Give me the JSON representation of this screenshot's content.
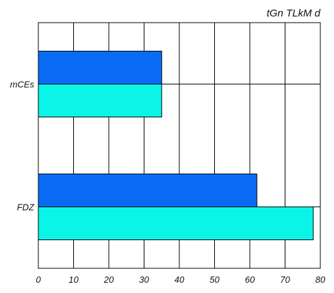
{
  "chart_data": {
    "type": "bar",
    "orientation": "horizontal",
    "title": "tGn TLkM d",
    "categories": [
      "mCEs",
      "FDZ"
    ],
    "series": [
      {
        "values": [
          35,
          62
        ],
        "color": "#0a6cf5"
      },
      {
        "values": [
          35,
          78
        ],
        "color": "#0af5e8"
      }
    ],
    "xlim": [
      0,
      80
    ],
    "xticks": [
      "0",
      "10",
      "20",
      "30",
      "40",
      "50",
      "60",
      "70",
      "80"
    ],
    "grid": true,
    "legend": "none"
  }
}
